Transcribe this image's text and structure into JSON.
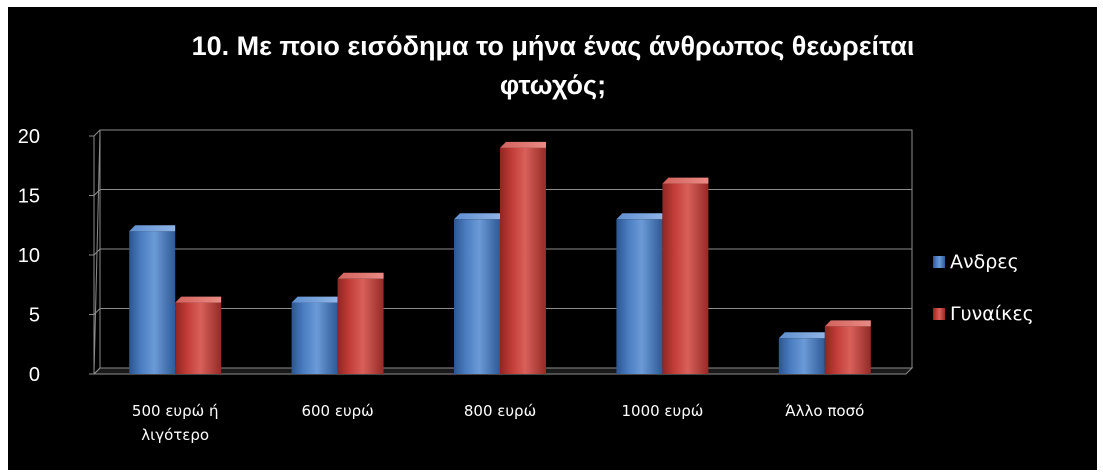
{
  "chart_data": {
    "type": "bar",
    "title": "10.  Με ποιο εισόδημα το μήνα ένας άνθρωπος θεωρείται φτωχός;",
    "title_lines": [
      "10.  Με ποιο εισόδημα το μήνα ένας άνθρωπος θεωρείται",
      "φτωχός;"
    ],
    "categories": [
      "500 ευρώ ή λιγότερο",
      "600 ευρώ",
      "800 ευρώ",
      "1000 ευρώ",
      "Άλλο ποσό"
    ],
    "category_lines": [
      [
        "500 ευρώ ή",
        "λιγότερο"
      ],
      [
        "600 ευρώ"
      ],
      [
        "800 ευρώ"
      ],
      [
        "1000 ευρώ"
      ],
      [
        "Άλλο ποσό"
      ]
    ],
    "series": [
      {
        "name": "Ανδρες",
        "values": [
          12,
          6,
          13,
          13,
          3
        ],
        "color": "#4f81bd"
      },
      {
        "name": "Γυναίκες",
        "values": [
          6,
          8,
          19,
          16,
          4
        ],
        "color": "#c0504d"
      }
    ],
    "xlabel": "",
    "ylabel": "",
    "ylim": [
      0,
      20
    ],
    "yticks": [
      0,
      5,
      10,
      15,
      20
    ],
    "grid": true,
    "legend_position": "right",
    "plot_background": "#000000",
    "background": "#000000",
    "gridline_color": "#8c8c8c",
    "text_color": "#ffffff"
  }
}
